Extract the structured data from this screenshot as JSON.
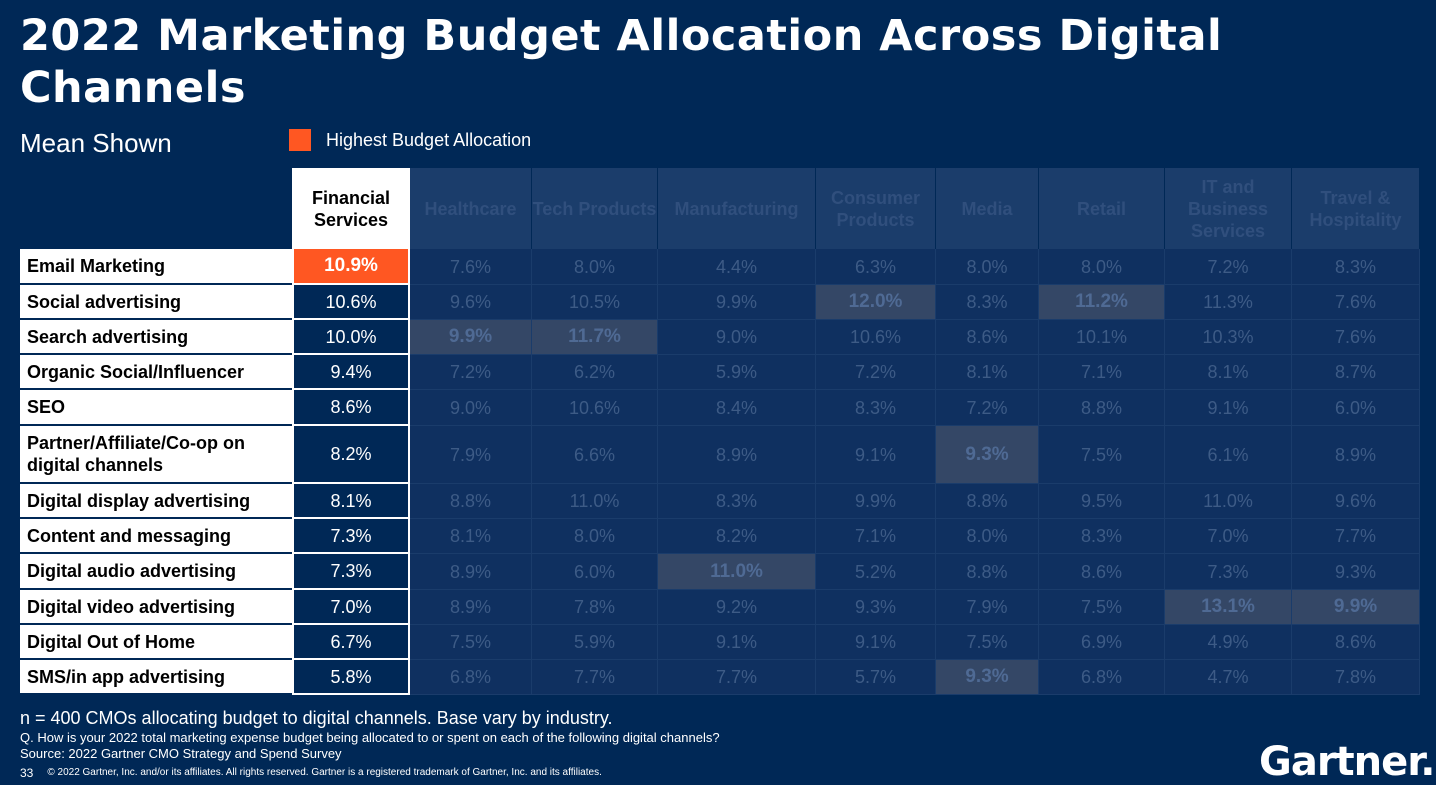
{
  "title": "2022 Marketing Budget Allocation Across Digital Channels",
  "subtitle": "Mean Shown",
  "legend": {
    "label": "Highest Budget Allocation",
    "color": "#ff5722"
  },
  "footnotes": {
    "sample": "n = 400 CMOs allocating budget to digital channels. Base vary by industry.",
    "question": "Q. How is your 2022 total marketing expense budget being allocated to or spent on each of the following digital channels?",
    "source": "Source: 2022 Gartner CMO Strategy and Spend Survey",
    "page_number": "33",
    "copyright": "© 2022 Gartner, Inc. and/or its affiliates. All rights reserved. Gartner is a registered trademark of Gartner, Inc. and its affiliates."
  },
  "logo": {
    "text": "Gartner."
  },
  "colors": {
    "background": "#002856",
    "highlight": "#ff5722",
    "faded_cell": "#0f3060",
    "faded_highlight": "#344766"
  },
  "chart_data": {
    "type": "table",
    "unit": "%",
    "active_column": "Financial Services",
    "columns": [
      {
        "key": "financial",
        "label": "Financial Services"
      },
      {
        "key": "healthcare",
        "label": "Healthcare"
      },
      {
        "key": "tech",
        "label": "Tech Products"
      },
      {
        "key": "manufacturing",
        "label": "Manufacturing"
      },
      {
        "key": "consumer",
        "label": "Consumer Products"
      },
      {
        "key": "media",
        "label": "Media"
      },
      {
        "key": "retail",
        "label": "Retail"
      },
      {
        "key": "it",
        "label": "IT and Business Services"
      },
      {
        "key": "travel",
        "label": "Travel & Hospitality"
      }
    ],
    "rows": [
      {
        "channel": "Email Marketing",
        "values": [
          "10.9%",
          "7.6%",
          "8.0%",
          "4.4%",
          "6.3%",
          "8.0%",
          "8.0%",
          "7.2%",
          "8.3%"
        ]
      },
      {
        "channel": "Social advertising",
        "values": [
          "10.6%",
          "9.6%",
          "10.5%",
          "9.9%",
          "12.0%",
          "8.3%",
          "11.2%",
          "11.3%",
          "7.6%"
        ]
      },
      {
        "channel": "Search advertising",
        "values": [
          "10.0%",
          "9.9%",
          "11.7%",
          "9.0%",
          "10.6%",
          "8.6%",
          "10.1%",
          "10.3%",
          "7.6%"
        ]
      },
      {
        "channel": "Organic Social/Influencer",
        "values": [
          "9.4%",
          "7.2%",
          "6.2%",
          "5.9%",
          "7.2%",
          "8.1%",
          "7.1%",
          "8.1%",
          "8.7%"
        ]
      },
      {
        "channel": "SEO",
        "values": [
          "8.6%",
          "9.0%",
          "10.6%",
          "8.4%",
          "8.3%",
          "7.2%",
          "8.8%",
          "9.1%",
          "6.0%"
        ]
      },
      {
        "channel": "Partner/Affiliate/Co-op on digital channels",
        "values": [
          "8.2%",
          "7.9%",
          "6.6%",
          "8.9%",
          "9.1%",
          "9.3%",
          "7.5%",
          "6.1%",
          "8.9%"
        ]
      },
      {
        "channel": "Digital display advertising",
        "values": [
          "8.1%",
          "8.8%",
          "11.0%",
          "8.3%",
          "9.9%",
          "8.8%",
          "9.5%",
          "11.0%",
          "9.6%"
        ]
      },
      {
        "channel": "Content and messaging",
        "values": [
          "7.3%",
          "8.1%",
          "8.0%",
          "8.2%",
          "7.1%",
          "8.0%",
          "8.3%",
          "7.0%",
          "7.7%"
        ]
      },
      {
        "channel": "Digital audio advertising",
        "values": [
          "7.3%",
          "8.9%",
          "6.0%",
          "11.0%",
          "5.2%",
          "8.8%",
          "8.6%",
          "7.3%",
          "9.3%"
        ]
      },
      {
        "channel": "Digital video advertising",
        "values": [
          "7.0%",
          "8.9%",
          "7.8%",
          "9.2%",
          "9.3%",
          "7.9%",
          "7.5%",
          "13.1%",
          "9.9%"
        ]
      },
      {
        "channel": "Digital Out of Home",
        "values": [
          "6.7%",
          "7.5%",
          "5.9%",
          "9.1%",
          "9.1%",
          "7.5%",
          "6.9%",
          "4.9%",
          "8.6%"
        ]
      },
      {
        "channel": "SMS/in app advertising",
        "values": [
          "5.8%",
          "6.8%",
          "7.7%",
          "7.7%",
          "5.7%",
          "9.3%",
          "6.8%",
          "4.7%",
          "7.8%"
        ]
      }
    ],
    "highest_allocation": [
      {
        "row": "Email Marketing",
        "column": "Financial Services"
      },
      {
        "row": "Search advertising",
        "column": "Healthcare"
      },
      {
        "row": "Search advertising",
        "column": "Tech Products"
      },
      {
        "row": "Digital audio advertising",
        "column": "Manufacturing"
      },
      {
        "row": "Social advertising",
        "column": "Consumer Products"
      },
      {
        "row": "Partner/Affiliate/Co-op on digital channels",
        "column": "Media"
      },
      {
        "row": "SMS/in app advertising",
        "column": "Media"
      },
      {
        "row": "Social advertising",
        "column": "Retail"
      },
      {
        "row": "Digital video advertising",
        "column": "IT and Business Services"
      },
      {
        "row": "Digital video advertising",
        "column": "Travel & Hospitality"
      }
    ]
  }
}
